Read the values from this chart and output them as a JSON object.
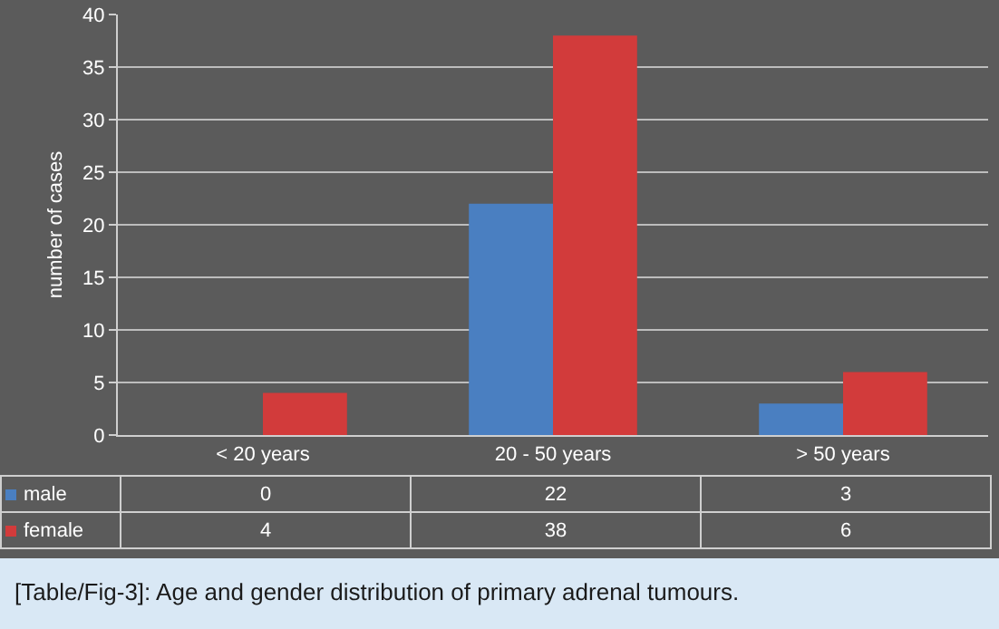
{
  "chart_data": {
    "type": "bar",
    "ylabel": "number of cases",
    "categories": [
      "< 20 years",
      "20 - 50 years",
      "> 50 years"
    ],
    "series": [
      {
        "name": "male",
        "color": "#4a7fc1",
        "values": [
          0,
          22,
          3
        ]
      },
      {
        "name": "female",
        "color": "#d23b3b",
        "values": [
          4,
          38,
          6
        ]
      }
    ],
    "ylim": [
      0,
      40
    ],
    "yticks": [
      0,
      5,
      10,
      15,
      20,
      25,
      30,
      35,
      40
    ],
    "grid": true,
    "legend": "bottom left",
    "data_labels": true,
    "annotations": [
      "[Table/Fig-3]: Age and gender distribution of primary adrenal tumours."
    ]
  }
}
